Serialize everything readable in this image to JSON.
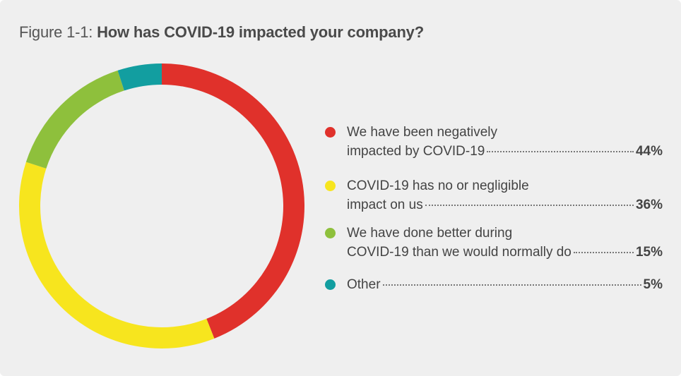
{
  "title": {
    "prefix": "Figure 1-1: ",
    "main": "How has COVID-19 impacted your company?"
  },
  "chart_data": {
    "type": "pie",
    "donut": true,
    "title": "How has COVID-19 impacted your company?",
    "categories": [
      "We have been negatively impacted by COVID-19",
      "COVID-19 has no or negligible impact on us",
      "We have done better during COVID-19 than we would normally do",
      "Other"
    ],
    "values": [
      44,
      36,
      15,
      5
    ],
    "unit": "%",
    "colors": [
      "#e0312b",
      "#f7e51e",
      "#8ec03c",
      "#129ea0"
    ],
    "legend_position": "right"
  },
  "legend": [
    {
      "line1": "We have been negatively",
      "line2": "impacted by COVID-19",
      "pct": "44%",
      "color": "#e0312b"
    },
    {
      "line1": "COVID-19 has no or negligible",
      "line2": "impact on us",
      "pct": "36%",
      "color": "#f7e51e"
    },
    {
      "line1": "We have done better during",
      "line2": "COVID-19 than we would normally do",
      "pct": "15%",
      "color": "#8ec03c"
    },
    {
      "line1": "",
      "line2": "Other",
      "pct": "5%",
      "color": "#129ea0"
    }
  ]
}
